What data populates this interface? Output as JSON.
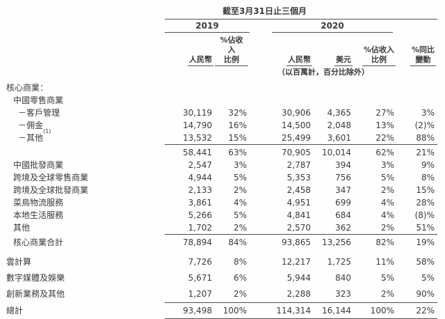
{
  "header": {
    "period_title": "截至3月31日止三個月",
    "year_2019": "2019",
    "year_2020": "2020",
    "units_note": "（以百萬計，百分比除外）",
    "columns": [
      {
        "l1": "人民幣",
        "l2": ""
      },
      {
        "l1": "%佔收入",
        "l2": "比例"
      },
      {
        "l1": "人民幣",
        "l2": ""
      },
      {
        "l1": "美元",
        "l2": ""
      },
      {
        "l1": "%佔收入",
        "l2": "比例"
      },
      {
        "l1": "%同比",
        "l2": "變動"
      }
    ]
  },
  "rows": [
    {
      "label": "核心商業：",
      "indent": 0,
      "values": [
        "",
        "",
        "",
        "",
        "",
        ""
      ]
    },
    {
      "label": "中國零售商業",
      "indent": 1,
      "values": [
        "",
        "",
        "",
        "",
        "",
        ""
      ]
    },
    {
      "label": "－客戶管理",
      "indent": 2,
      "values": [
        "30,119",
        "32%",
        "30,906",
        "4,365",
        "27%",
        "3%"
      ]
    },
    {
      "label": "－佣金",
      "indent": 2,
      "values": [
        "14,790",
        "16%",
        "14,500",
        "2,048",
        "13%",
        "(2)%"
      ]
    },
    {
      "label": "－其他",
      "sup": "(1)",
      "indent": 2,
      "values": [
        "13,532",
        "15%",
        "25,499",
        "3,601",
        "22%",
        "88%"
      ]
    },
    {
      "label": "",
      "indent": 0,
      "values": [
        "58,441",
        "63%",
        "70,905",
        "10,014",
        "62%",
        "21%"
      ],
      "rule_above": true
    },
    {
      "label": "中國批發商業",
      "indent": 1,
      "values": [
        "2,547",
        "3%",
        "2,787",
        "394",
        "3%",
        "9%"
      ]
    },
    {
      "label": "跨境及全球零售商業",
      "indent": 1,
      "values": [
        "4,944",
        "5%",
        "5,353",
        "756",
        "5%",
        "8%"
      ]
    },
    {
      "label": "跨境及全球批發商業",
      "indent": 1,
      "values": [
        "2,133",
        "2%",
        "2,458",
        "347",
        "2%",
        "15%"
      ]
    },
    {
      "label": "菜鳥物流服務",
      "indent": 1,
      "values": [
        "3,861",
        "4%",
        "4,951",
        "699",
        "4%",
        "28%"
      ]
    },
    {
      "label": "本地生活服務",
      "indent": 1,
      "values": [
        "5,266",
        "5%",
        "4,841",
        "684",
        "4%",
        "(8)%"
      ]
    },
    {
      "label": "其他",
      "indent": 1,
      "values": [
        "1,702",
        "2%",
        "2,570",
        "362",
        "2%",
        "51%"
      ]
    },
    {
      "label": "核心商業合計",
      "indent": 1,
      "values": [
        "78,894",
        "84%",
        "93,865",
        "13,256",
        "82%",
        "19%"
      ],
      "rule_above": true
    },
    {
      "label": "雲計算",
      "indent": 0,
      "values": [
        "7,726",
        "8%",
        "12,217",
        "1,725",
        "11%",
        "58%"
      ],
      "gap": 10
    },
    {
      "label": "數字媒體及娛樂",
      "indent": 0,
      "values": [
        "5,671",
        "6%",
        "5,944",
        "840",
        "5%",
        "5%"
      ],
      "gap": 5
    },
    {
      "label": "創新業務及其他",
      "indent": 0,
      "values": [
        "1,207",
        "2%",
        "2,288",
        "323",
        "2%",
        "90%"
      ],
      "gap": 5
    },
    {
      "label": "總計",
      "indent": 0,
      "values": [
        "93,498",
        "100%",
        "114,314",
        "16,144",
        "100%",
        "22%"
      ],
      "rule_above": true,
      "rule_below": true,
      "gap": 3
    }
  ],
  "column_keys": [
    "rmb-2019",
    "pct-revenue-2019",
    "rmb-2020",
    "usd-2020",
    "pct-revenue-2020",
    "yoy-change"
  ]
}
